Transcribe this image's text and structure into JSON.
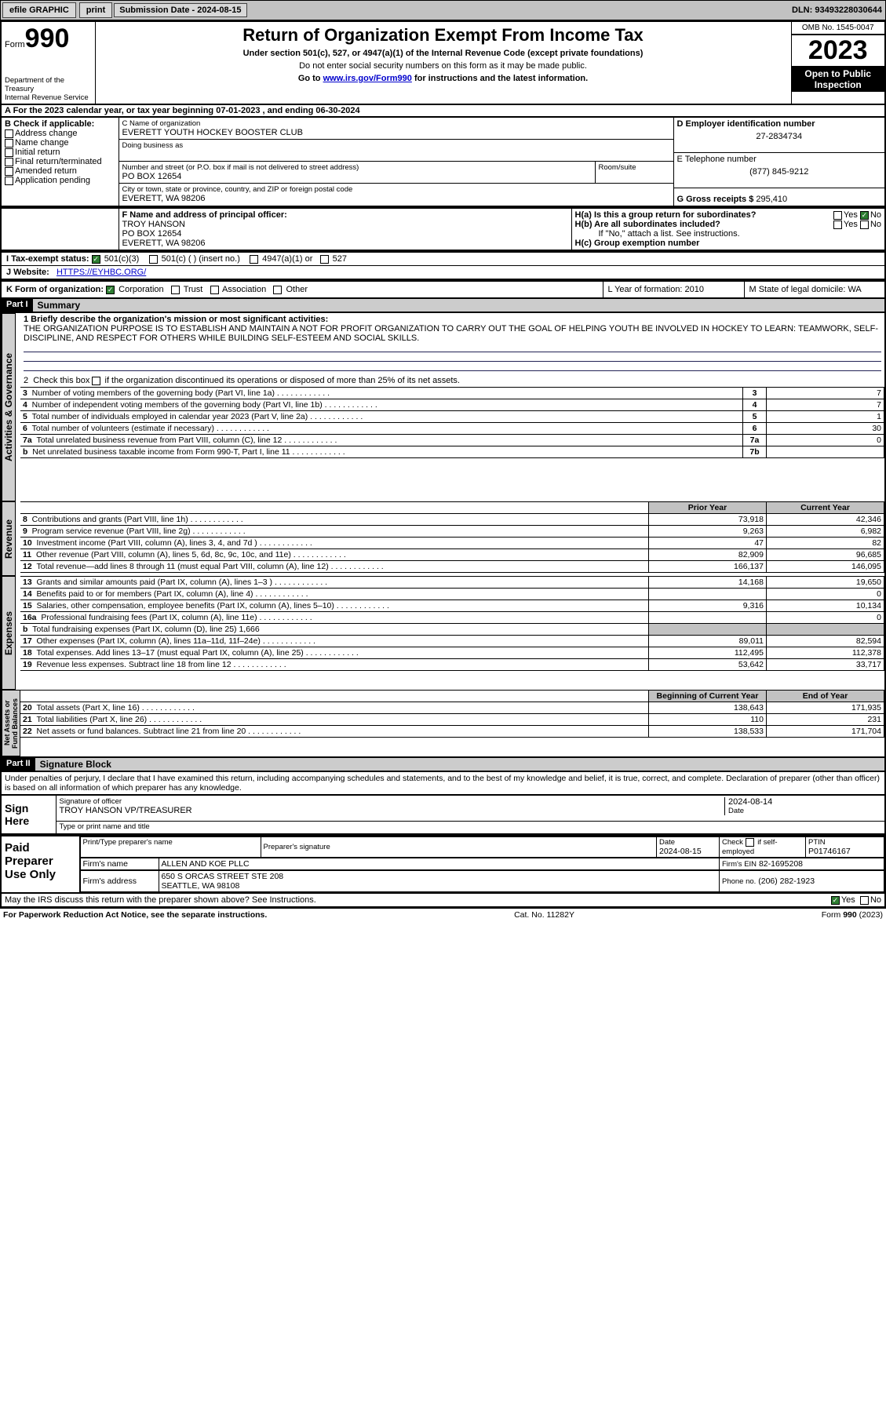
{
  "topbar": {
    "efile": "efile GRAPHIC",
    "print": "print",
    "submission_label": "Submission Date - 2024-08-15",
    "dln": "DLN: 93493228030644"
  },
  "header": {
    "form_word": "Form",
    "form_num": "990",
    "dept": "Department of the Treasury",
    "irs": "Internal Revenue Service",
    "title": "Return of Organization Exempt From Income Tax",
    "sub1": "Under section 501(c), 527, or 4947(a)(1) of the Internal Revenue Code (except private foundations)",
    "sub2": "Do not enter social security numbers on this form as it may be made public.",
    "sub3": "Go to ",
    "sub3_link": "www.irs.gov/Form990",
    "sub3_tail": " for instructions and the latest information.",
    "omb": "OMB No. 1545-0047",
    "year": "2023",
    "open": "Open to Public Inspection"
  },
  "lineA": {
    "prefix": "A For the 2023 calendar year, or tax year beginning ",
    "begin": "07-01-2023",
    "mid": "  , and ending ",
    "end": "06-30-2024"
  },
  "boxB": {
    "label": "B Check if applicable:",
    "opts": [
      "Address change",
      "Name change",
      "Initial return",
      "Final return/terminated",
      "Amended return",
      "Application pending"
    ]
  },
  "boxC": {
    "name_label": "C Name of organization",
    "name": "EVERETT YOUTH HOCKEY BOOSTER CLUB",
    "dba_label": "Doing business as",
    "street_label": "Number and street (or P.O. box if mail is not delivered to street address)",
    "room_label": "Room/suite",
    "street": "PO BOX 12654",
    "city_label": "City or town, state or province, country, and ZIP or foreign postal code",
    "city": "EVERETT, WA  98206"
  },
  "boxD": {
    "label": "D Employer identification number",
    "ein": "27-2834734"
  },
  "boxE": {
    "label": "E Telephone number",
    "phone": "(877) 845-9212"
  },
  "boxG": {
    "label": "G Gross receipts $",
    "amount": "295,410"
  },
  "boxF": {
    "label": "F Name and address of principal officer:",
    "name": "TROY HANSON",
    "addr1": "PO BOX 12654",
    "addr2": "EVERETT, WA  98206"
  },
  "boxH": {
    "ha": "H(a)  Is this a group return for subordinates?",
    "hb": "H(b)  Are all subordinates included?",
    "hb_note": "If \"No,\" attach a list. See instructions.",
    "hc": "H(c)  Group exemption number ",
    "yes": "Yes",
    "no": "No"
  },
  "lineI": {
    "label": "I   Tax-exempt status:",
    "opts": [
      "501(c)(3)",
      "501(c) (  ) (insert no.)",
      "4947(a)(1) or",
      "527"
    ]
  },
  "lineJ": {
    "label": "J   Website:",
    "url": "HTTPS://EYHBC.ORG/"
  },
  "lineK": {
    "label": "K Form of organization:",
    "opts": [
      "Corporation",
      "Trust",
      "Association",
      "Other"
    ]
  },
  "lineL": {
    "label": "L Year of formation: 2010"
  },
  "lineM": {
    "label": "M State of legal domicile: WA"
  },
  "part1": {
    "hdr": "Part I",
    "title": "Summary",
    "q1": "1   Briefly describe the organization's mission or most significant activities:",
    "mission": "THE ORGANIZATION PURPOSE IS TO ESTABLISH AND MAINTAIN A NOT FOR PROFIT ORGANIZATION TO CARRY OUT THE GOAL OF HELPING YOUTH BE INVOLVED IN HOCKEY TO LEARN: TEAMWORK, SELF-DISCIPLINE, AND RESPECT FOR OTHERS WHILE BUILDING SELF-ESTEEM AND SOCIAL SKILLS.",
    "q2": "2   Check this box       if the organization discontinued its operations or disposed of more than 25% of its net assets.",
    "side_act": "Activities & Governance",
    "side_rev": "Revenue",
    "side_exp": "Expenses",
    "side_net": "Net Assets or Fund Balances",
    "rows_gov": [
      {
        "n": "3",
        "t": "Number of voting members of the governing body (Part VI, line 1a)",
        "c": "3",
        "v": "7"
      },
      {
        "n": "4",
        "t": "Number of independent voting members of the governing body (Part VI, line 1b)",
        "c": "4",
        "v": "7"
      },
      {
        "n": "5",
        "t": "Total number of individuals employed in calendar year 2023 (Part V, line 2a)",
        "c": "5",
        "v": "1"
      },
      {
        "n": "6",
        "t": "Total number of volunteers (estimate if necessary)",
        "c": "6",
        "v": "30"
      },
      {
        "n": "7a",
        "t": "Total unrelated business revenue from Part VIII, column (C), line 12",
        "c": "7a",
        "v": "0"
      },
      {
        "n": "b",
        "t": "Net unrelated business taxable income from Form 990-T, Part I, line 11",
        "c": "7b",
        "v": ""
      }
    ],
    "col_prior": "Prior Year",
    "col_current": "Current Year",
    "rows_rev": [
      {
        "n": "8",
        "t": "Contributions and grants (Part VIII, line 1h)",
        "p": "73,918",
        "c": "42,346"
      },
      {
        "n": "9",
        "t": "Program service revenue (Part VIII, line 2g)",
        "p": "9,263",
        "c": "6,982"
      },
      {
        "n": "10",
        "t": "Investment income (Part VIII, column (A), lines 3, 4, and 7d )",
        "p": "47",
        "c": "82"
      },
      {
        "n": "11",
        "t": "Other revenue (Part VIII, column (A), lines 5, 6d, 8c, 9c, 10c, and 11e)",
        "p": "82,909",
        "c": "96,685"
      },
      {
        "n": "12",
        "t": "Total revenue—add lines 8 through 11 (must equal Part VIII, column (A), line 12)",
        "p": "166,137",
        "c": "146,095"
      }
    ],
    "rows_exp": [
      {
        "n": "13",
        "t": "Grants and similar amounts paid (Part IX, column (A), lines 1–3 )",
        "p": "14,168",
        "c": "19,650"
      },
      {
        "n": "14",
        "t": "Benefits paid to or for members (Part IX, column (A), line 4)",
        "p": "",
        "c": "0"
      },
      {
        "n": "15",
        "t": "Salaries, other compensation, employee benefits (Part IX, column (A), lines 5–10)",
        "p": "9,316",
        "c": "10,134"
      },
      {
        "n": "16a",
        "t": "Professional fundraising fees (Part IX, column (A), line 11e)",
        "p": "",
        "c": "0"
      },
      {
        "n": "b",
        "t": "Total fundraising expenses (Part IX, column (D), line 25) 1,666",
        "p": "—shade—",
        "c": "—shade—"
      },
      {
        "n": "17",
        "t": "Other expenses (Part IX, column (A), lines 11a–11d, 11f–24e)",
        "p": "89,011",
        "c": "82,594"
      },
      {
        "n": "18",
        "t": "Total expenses. Add lines 13–17 (must equal Part IX, column (A), line 25)",
        "p": "112,495",
        "c": "112,378"
      },
      {
        "n": "19",
        "t": "Revenue less expenses. Subtract line 18 from line 12",
        "p": "53,642",
        "c": "33,717"
      }
    ],
    "col_begin": "Beginning of Current Year",
    "col_end": "End of Year",
    "rows_net": [
      {
        "n": "20",
        "t": "Total assets (Part X, line 16)",
        "p": "138,643",
        "c": "171,935"
      },
      {
        "n": "21",
        "t": "Total liabilities (Part X, line 26)",
        "p": "110",
        "c": "231"
      },
      {
        "n": "22",
        "t": "Net assets or fund balances. Subtract line 21 from line 20",
        "p": "138,533",
        "c": "171,704"
      }
    ]
  },
  "part2": {
    "hdr": "Part II",
    "title": "Signature Block",
    "perjury": "Under penalties of perjury, I declare that I have examined this return, including accompanying schedules and statements, and to the best of my knowledge and belief, it is true, correct, and complete. Declaration of preparer (other than officer) is based on all information of which preparer has any knowledge.",
    "sign_here": "Sign Here",
    "sig_officer": "Signature of officer",
    "sig_name": "TROY HANSON  VP/TREASURER",
    "sig_typed": "Type or print name and title",
    "date_label": "Date",
    "date_val": "2024-08-14",
    "paid": "Paid Preparer Use Only",
    "col_print": "Print/Type preparer's name",
    "col_sig": "Preparer's signature",
    "col_date": "Date",
    "prep_date": "2024-08-15",
    "col_check": "Check         if self-employed",
    "col_ptin": "PTIN",
    "ptin": "P01746167",
    "firm_name_label": "Firm's name",
    "firm_name": "ALLEN AND KOE PLLC",
    "firm_ein_label": "Firm's EIN",
    "firm_ein": "82-1695208",
    "firm_addr_label": "Firm's address",
    "firm_addr1": "650 S ORCAS STREET STE 208",
    "firm_addr2": "SEATTLE, WA  98108",
    "phone_label": "Phone no.",
    "phone": "(206) 282-1923",
    "may_discuss": "May the IRS discuss this return with the preparer shown above? See Instructions.",
    "yes": "Yes",
    "no": "No"
  },
  "footer": {
    "left": "For Paperwork Reduction Act Notice, see the separate instructions.",
    "mid": "Cat. No. 11282Y",
    "right": "Form 990 (2023)"
  }
}
